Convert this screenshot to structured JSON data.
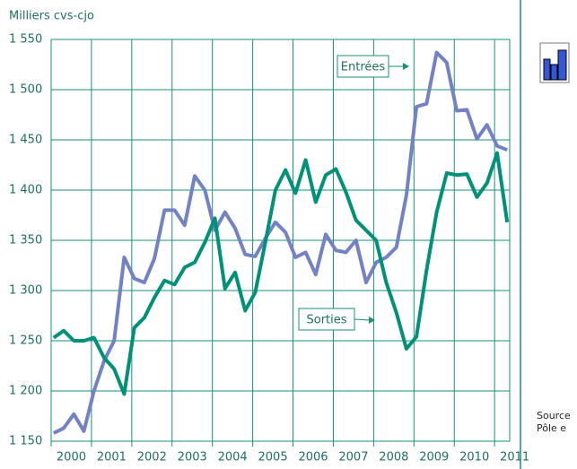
{
  "chart_data": {
    "type": "line",
    "title": "Milliers cvs-cjo",
    "categories": [
      "2000",
      null,
      null,
      null,
      "2001",
      null,
      null,
      null,
      "2002",
      null,
      null,
      null,
      "2003",
      null,
      null,
      null,
      "2004",
      null,
      null,
      null,
      "2005",
      null,
      null,
      null,
      "2006",
      null,
      null,
      null,
      "2007",
      null,
      null,
      null,
      "2008",
      null,
      null,
      null,
      "2009",
      null,
      null,
      null,
      "2010",
      null,
      null,
      null,
      "2011",
      null
    ],
    "series": [
      {
        "name": "Entrées",
        "color": "#7282c4",
        "values": [
          1158,
          1163,
          1177,
          1160,
          1200,
          1230,
          1250,
          1333,
          1312,
          1308,
          1332,
          1380,
          1380,
          1365,
          1414,
          1400,
          1360,
          1378,
          1362,
          1336,
          1334,
          1352,
          1368,
          1358,
          1333,
          1338,
          1316,
          1356,
          1340,
          1338,
          1350,
          1308,
          1328,
          1333,
          1343,
          1395,
          1483,
          1486,
          1537,
          1527,
          1479,
          1480,
          1451,
          1465,
          1444,
          1440
        ]
      },
      {
        "name": "Sorties",
        "color": "#009178",
        "values": [
          1253,
          1260,
          1250,
          1250,
          1253,
          1233,
          1222,
          1197,
          1263,
          1273,
          1293,
          1310,
          1306,
          1323,
          1328,
          1348,
          1372,
          1302,
          1318,
          1280,
          1298,
          1348,
          1400,
          1420,
          1397,
          1430,
          1388,
          1415,
          1421,
          1398,
          1370,
          1360,
          1350,
          1308,
          1278,
          1242,
          1254,
          1320,
          1378,
          1417,
          1415,
          1416,
          1393,
          1407,
          1437,
          1368
        ]
      }
    ],
    "ylim": [
      1150,
      1550
    ],
    "yticks": [
      {
        "value": 1150,
        "label": "1 150"
      },
      {
        "value": 1200,
        "label": "1 200"
      },
      {
        "value": 1250,
        "label": "1 250"
      },
      {
        "value": 1300,
        "label": "1 300"
      },
      {
        "value": 1350,
        "label": "1 350"
      },
      {
        "value": 1400,
        "label": "1 400"
      },
      {
        "value": 1450,
        "label": "1 450"
      },
      {
        "value": 1500,
        "label": "1 500"
      },
      {
        "value": 1550,
        "label": "1 550"
      }
    ],
    "grid": true,
    "source_note": [
      "Source",
      "Pôle e"
    ]
  }
}
